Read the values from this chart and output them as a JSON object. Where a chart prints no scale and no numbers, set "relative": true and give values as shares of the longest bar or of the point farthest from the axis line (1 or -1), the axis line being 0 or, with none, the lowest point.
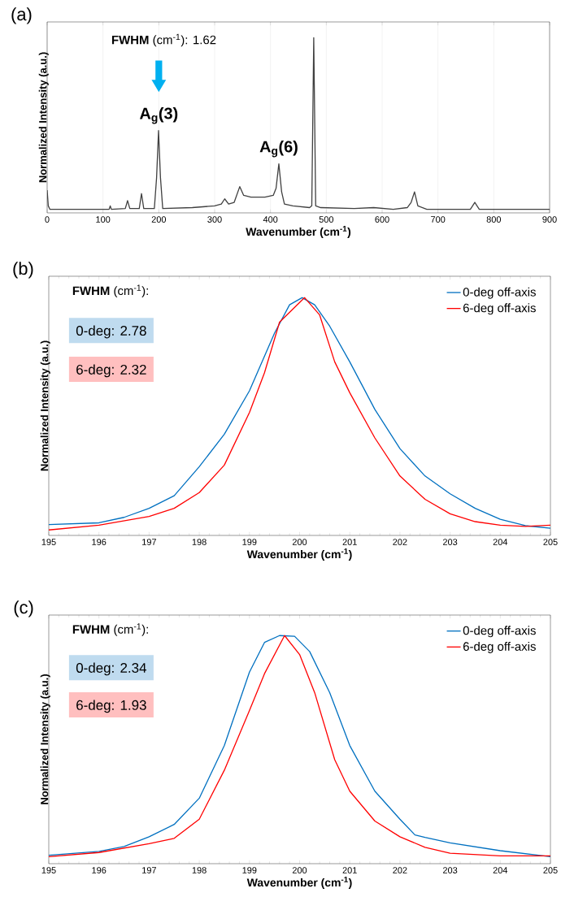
{
  "chart_data": [
    {
      "type": "line",
      "title": "(a)",
      "xlabel": "Wavenumber (cm$^{-1}$)",
      "ylabel": "Normalized Intensity (a.u.)",
      "relative": true,
      "grid": "x",
      "xlim": [
        0,
        900
      ],
      "xticks": [
        0,
        100,
        200,
        300,
        400,
        500,
        600,
        700,
        800,
        900
      ],
      "series": [
        {
          "color": "#404040",
          "x": [
            0,
            2,
            5,
            100,
            111,
            113,
            115,
            140,
            144,
            148,
            165,
            169,
            173,
            192,
            196,
            199.5,
            203,
            207,
            260,
            300,
            312,
            318,
            325,
            335,
            345,
            352,
            365,
            390,
            405,
            410,
            415,
            420,
            425,
            440,
            470,
            474,
            477.5,
            481,
            490,
            550,
            585,
            620,
            645,
            652,
            658,
            664,
            680,
            758,
            766,
            774,
            900
          ],
          "values": [
            0.13,
            0.04,
            0.02,
            0.02,
            0.02,
            0.04,
            0.02,
            0.025,
            0.07,
            0.025,
            0.025,
            0.11,
            0.025,
            0.025,
            0.2,
            0.47,
            0.2,
            0.025,
            0.03,
            0.04,
            0.05,
            0.08,
            0.05,
            0.06,
            0.15,
            0.1,
            0.09,
            0.09,
            0.1,
            0.14,
            0.28,
            0.12,
            0.05,
            0.04,
            0.03,
            0.04,
            1.0,
            0.04,
            0.03,
            0.025,
            0.03,
            0.02,
            0.03,
            0.06,
            0.12,
            0.04,
            0.02,
            0.02,
            0.06,
            0.02,
            0.02
          ]
        }
      ],
      "annotations": [
        "**FWHM** (cm$^{-1}$): 1.62",
        {
          "text": "A$_{g}$(3)",
          "x": 200,
          "y": 0.47
        },
        {
          "text": "A$_{g}$(6)",
          "x": 415,
          "y": 0.28
        }
      ]
    },
    {
      "type": "line",
      "title": "(b)",
      "xlabel": "Wavenumber (cm$^{-1}$)",
      "ylabel": "Normalized Intensity (a.u.)",
      "relative": true,
      "legend": "top right",
      "xlim": [
        195,
        205
      ],
      "xticks": [
        195,
        196,
        197,
        198,
        199,
        200,
        201,
        202,
        203,
        204,
        205
      ],
      "series": [
        {
          "name": "0-deg  off-axis",
          "color": "#0070c0",
          "x": [
            195,
            196,
            196.5,
            197,
            197.5,
            198,
            198.5,
            199,
            199.5,
            199.8,
            200.05,
            200.3,
            200.6,
            201,
            201.5,
            202,
            202.5,
            203,
            203.5,
            204,
            204.5,
            205
          ],
          "values": [
            0.046,
            0.053,
            0.076,
            0.114,
            0.167,
            0.289,
            0.426,
            0.608,
            0.851,
            0.97,
            1.0,
            0.97,
            0.88,
            0.73,
            0.53,
            0.365,
            0.25,
            0.175,
            0.114,
            0.068,
            0.041,
            0.03
          ]
        },
        {
          "name": "6-deg  off-axis",
          "color": "#ff0000",
          "x": [
            195,
            196,
            197,
            197.5,
            198,
            198.5,
            199,
            199.3,
            199.6,
            200.1,
            200.4,
            200.7,
            201,
            201.5,
            202,
            202.5,
            203,
            203.5,
            204,
            204.5,
            205
          ],
          "values": [
            0.023,
            0.043,
            0.08,
            0.114,
            0.18,
            0.296,
            0.517,
            0.684,
            0.897,
            1.0,
            0.927,
            0.73,
            0.6,
            0.41,
            0.25,
            0.152,
            0.091,
            0.058,
            0.043,
            0.038,
            0.043
          ]
        }
      ],
      "annotations": [
        "**FWHM** (cm$^{-1}$):",
        "0-deg: 2.78",
        "6-deg: 2.32"
      ]
    },
    {
      "type": "line",
      "title": "(c)",
      "xlabel": "Wavenumber (cm$^{-1}$)",
      "ylabel": "Normalized Intensity (a.u.)",
      "relative": true,
      "legend": "top right",
      "xlim": [
        195,
        205
      ],
      "xticks": [
        195,
        196,
        197,
        198,
        199,
        200,
        201,
        202,
        203,
        204,
        205
      ],
      "series": [
        {
          "name": "0-deg  off-axis",
          "color": "#0070c0",
          "x": [
            195,
            196,
            196.5,
            197,
            197.5,
            198,
            198.5,
            199,
            199.3,
            199.6,
            199.9,
            200.2,
            200.6,
            201,
            201.5,
            202,
            202.3,
            202.5,
            203,
            204,
            205
          ],
          "values": [
            0.037,
            0.054,
            0.075,
            0.118,
            0.172,
            0.287,
            0.518,
            0.84,
            0.97,
            1.0,
            0.997,
            0.93,
            0.75,
            0.518,
            0.318,
            0.195,
            0.126,
            0.115,
            0.091,
            0.057,
            0.031
          ]
        },
        {
          "name": "6-deg  off-axis",
          "color": "#ff0000",
          "x": [
            195,
            196,
            197,
            197.5,
            198,
            198.5,
            199,
            199.3,
            199.7,
            200,
            200.3,
            200.7,
            201,
            201.5,
            202,
            202.5,
            203,
            204,
            205
          ],
          "values": [
            0.031,
            0.049,
            0.088,
            0.111,
            0.195,
            0.41,
            0.671,
            0.833,
            1.0,
            0.917,
            0.75,
            0.456,
            0.318,
            0.187,
            0.118,
            0.072,
            0.046,
            0.034,
            0.034
          ]
        }
      ],
      "annotations": [
        "**FWHM** (cm$^{-1}$):",
        "0-deg: 2.34",
        "6-deg: 1.93"
      ]
    }
  ]
}
